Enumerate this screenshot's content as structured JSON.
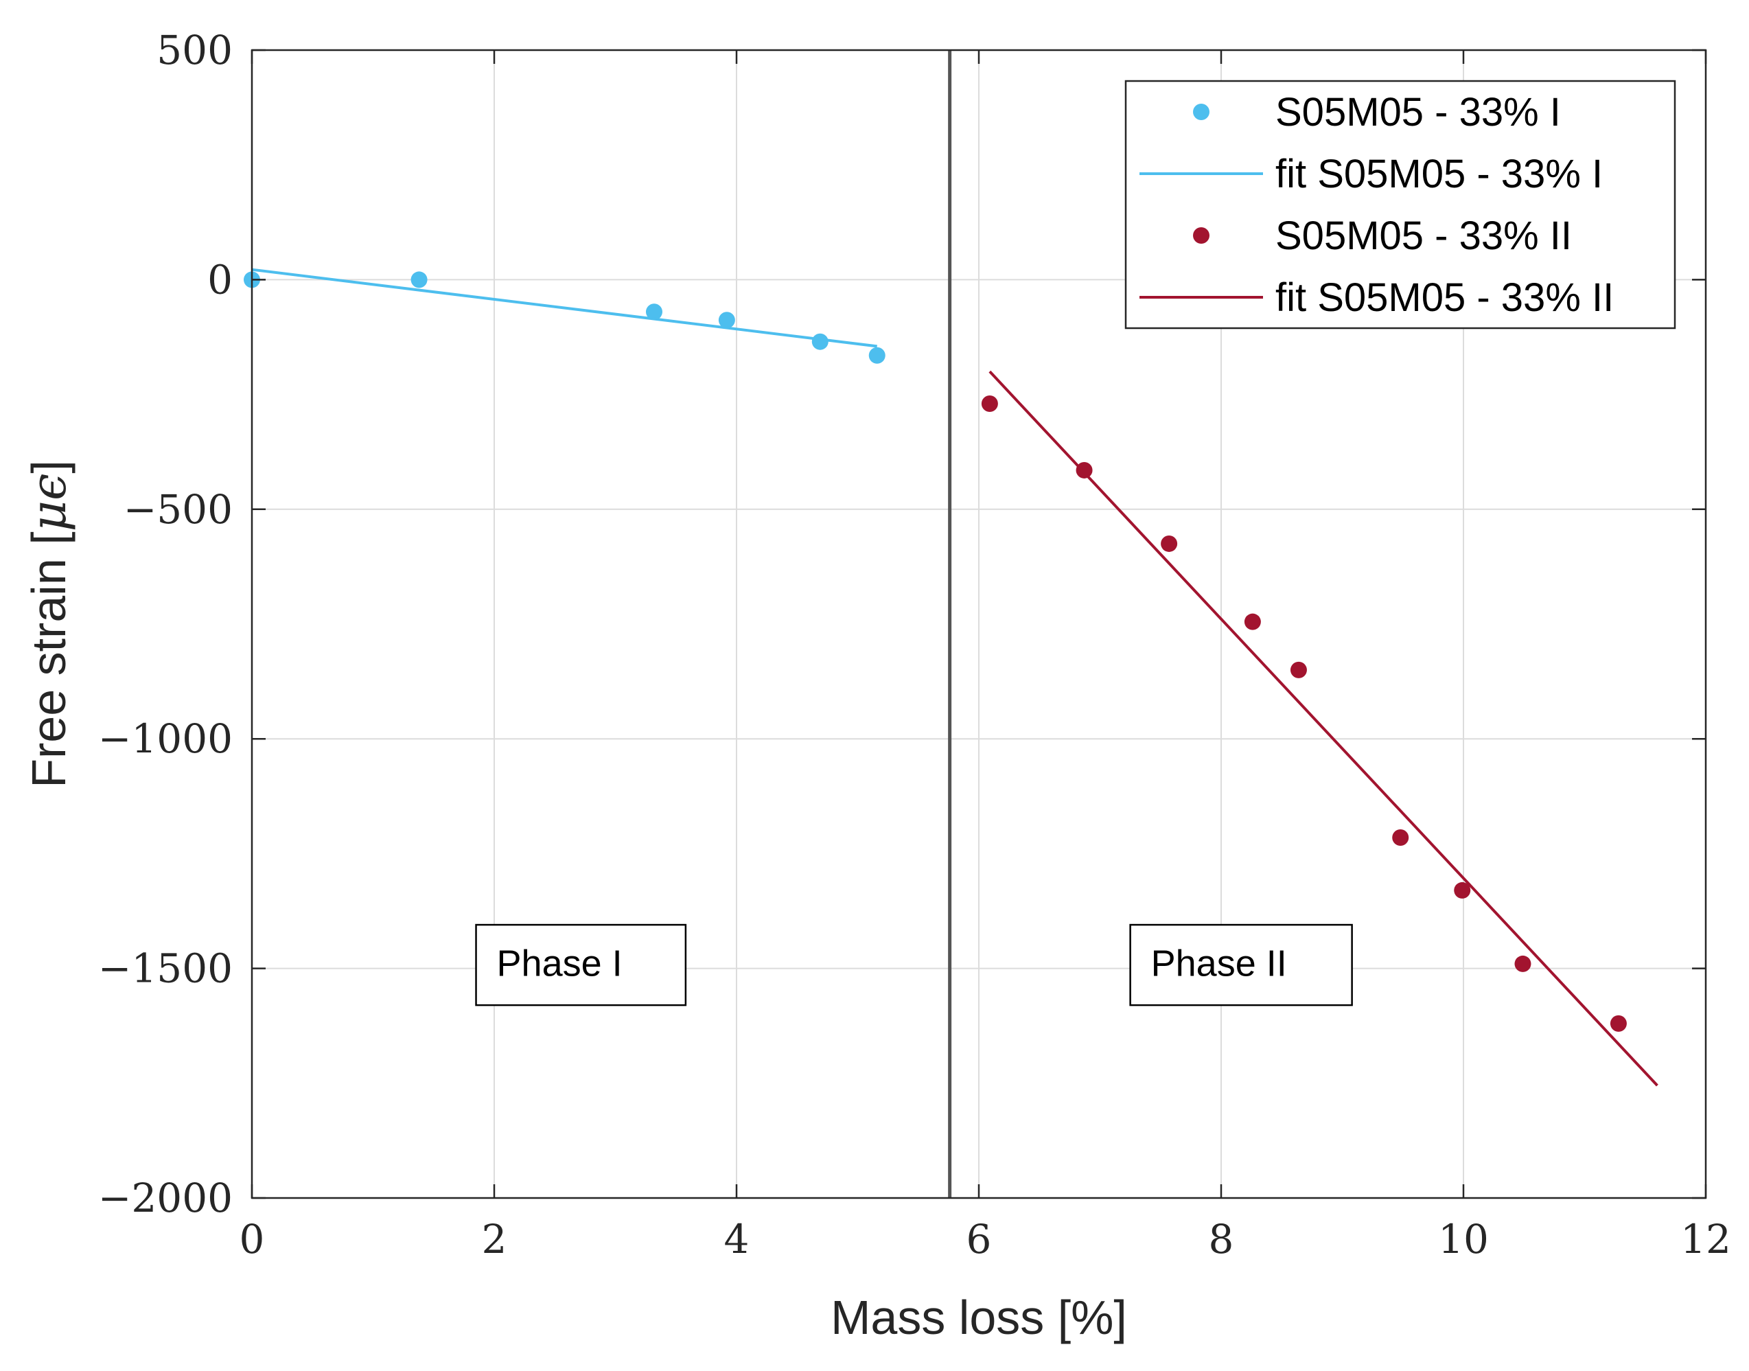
{
  "chart_data": {
    "type": "scatter",
    "xlabel": "Mass loss [%]",
    "ylabel_main": "Free strain [",
    "ylabel_unit": "μϵ",
    "ylabel_close": "]",
    "xlim": [
      0,
      12
    ],
    "ylim": [
      -2000,
      500
    ],
    "xticks": [
      0,
      2,
      4,
      6,
      8,
      10,
      12
    ],
    "yticks": [
      500,
      0,
      -500,
      -1000,
      -1500,
      -2000
    ],
    "xtick_labels": [
      "0",
      "2",
      "4",
      "6",
      "8",
      "10",
      "12"
    ],
    "ytick_labels": [
      "500",
      "0",
      "−500",
      "−1000",
      "−1500",
      "−2000"
    ],
    "grid": true,
    "legend_position": "top-right",
    "series": [
      {
        "name": "S05M05 - 33% I",
        "kind": "points",
        "color": "#4dbeee",
        "x": [
          0.0,
          1.38,
          3.32,
          3.92,
          4.69,
          5.16
        ],
        "y": [
          0,
          0,
          -70,
          -88,
          -135,
          -165
        ]
      },
      {
        "name": "fit S05M05 - 33% I",
        "kind": "line",
        "color": "#4dbeee",
        "x": [
          0.0,
          5.16
        ],
        "y": [
          22,
          -145
        ]
      },
      {
        "name": "S05M05 - 33% II",
        "kind": "points",
        "color": "#a2142f",
        "x": [
          6.09,
          6.87,
          7.57,
          8.26,
          8.64,
          9.48,
          9.99,
          10.49,
          11.28
        ],
        "y": [
          -270,
          -415,
          -575,
          -745,
          -850,
          -1215,
          -1330,
          -1490,
          -1620
        ]
      },
      {
        "name": "fit S05M05 - 33% II",
        "kind": "line",
        "color": "#a2142f",
        "x": [
          6.09,
          11.6
        ],
        "y": [
          -200,
          -1755
        ]
      }
    ],
    "vertical_line": {
      "x": 5.76,
      "color": "#555555"
    },
    "annotations": [
      {
        "text": "Phase I",
        "x0": 1.85,
        "x1": 3.58,
        "y0": -1405,
        "y1": -1580
      },
      {
        "text": "Phase II",
        "x0": 7.25,
        "x1": 9.08,
        "y0": -1405,
        "y1": -1580
      }
    ]
  }
}
